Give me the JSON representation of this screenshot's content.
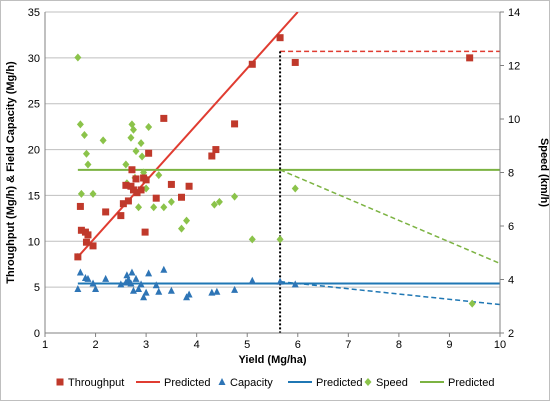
{
  "chart_data": {
    "type": "scatter",
    "xlabel": "Yield (Mg/ha)",
    "ylabel": "Throughput (Mg/h) & Field Capacity (Mg/h)",
    "y2label": "Speed (km/h)",
    "xlim": [
      1,
      10
    ],
    "ylim": [
      0,
      35
    ],
    "y2lim": [
      2,
      14
    ],
    "xticks": [
      "1",
      "2",
      "3",
      "4",
      "5",
      "6",
      "7",
      "8",
      "9",
      "10"
    ],
    "yticks": [
      "0",
      "5",
      "10",
      "15",
      "20",
      "25",
      "30",
      "35"
    ],
    "y2ticks": [
      "2",
      "4",
      "6",
      "8",
      "10",
      "12",
      "14"
    ],
    "grid": "horizontal",
    "legend_position": "bottom",
    "colors": {
      "throughput": "#c0392b",
      "capacity": "#2e75b6",
      "speed": "#8bc34a",
      "throughput_pred": "#e03c31",
      "capacity_pred": "#1f77b4",
      "speed_pred": "#7cb342"
    },
    "legend": [
      "Throughput",
      "Predicted",
      "Capacity",
      "Predicted",
      "Speed",
      "Predicted"
    ],
    "throughput": [
      [
        1.65,
        8.3
      ],
      [
        1.7,
        13.8
      ],
      [
        1.72,
        11.2
      ],
      [
        1.8,
        11
      ],
      [
        1.85,
        10.7
      ],
      [
        1.82,
        9.9
      ],
      [
        1.95,
        9.5
      ],
      [
        2.2,
        13.2
      ],
      [
        2.5,
        12.8
      ],
      [
        2.55,
        14.1
      ],
      [
        2.6,
        16.1
      ],
      [
        2.65,
        14.4
      ],
      [
        2.7,
        16
      ],
      [
        2.72,
        17.8
      ],
      [
        2.75,
        15.6
      ],
      [
        2.8,
        16.8
      ],
      [
        2.82,
        15.3
      ],
      [
        2.9,
        15.6
      ],
      [
        2.95,
        16.9
      ],
      [
        2.98,
        11
      ],
      [
        3.0,
        16.7
      ],
      [
        3.05,
        19.6
      ],
      [
        3.2,
        14.7
      ],
      [
        3.35,
        23.4
      ],
      [
        3.5,
        16.2
      ],
      [
        3.7,
        14.8
      ],
      [
        3.85,
        16
      ],
      [
        4.3,
        19.3
      ],
      [
        4.38,
        20
      ],
      [
        4.75,
        22.8
      ],
      [
        5.1,
        29.3
      ],
      [
        5.65,
        32.2
      ],
      [
        5.95,
        29.5
      ],
      [
        9.4,
        30
      ]
    ],
    "capacity": [
      [
        1.65,
        8.3
      ],
      [
        1.65,
        4.8
      ],
      [
        1.7,
        6.6
      ],
      [
        1.8,
        6
      ],
      [
        1.85,
        5.9
      ],
      [
        1.95,
        5.4
      ],
      [
        2.0,
        4.8
      ],
      [
        2.2,
        5.9
      ],
      [
        2.5,
        5.3
      ],
      [
        2.6,
        5.5
      ],
      [
        2.62,
        6.3
      ],
      [
        2.65,
        5.8
      ],
      [
        2.7,
        5.4
      ],
      [
        2.72,
        6.6
      ],
      [
        2.75,
        4.6
      ],
      [
        2.8,
        5.9
      ],
      [
        2.85,
        4.8
      ],
      [
        2.9,
        5.3
      ],
      [
        2.95,
        3.9
      ],
      [
        3.0,
        4.4
      ],
      [
        3.05,
        6.5
      ],
      [
        3.2,
        5.2
      ],
      [
        3.25,
        4.5
      ],
      [
        3.35,
        6.9
      ],
      [
        3.5,
        4.6
      ],
      [
        3.8,
        3.9
      ],
      [
        3.85,
        4.2
      ],
      [
        4.3,
        4.4
      ],
      [
        4.4,
        4.5
      ],
      [
        4.75,
        4.7
      ],
      [
        5.1,
        5.7
      ],
      [
        5.65,
        5.6
      ],
      [
        5.95,
        5.3
      ]
    ],
    "speed": [
      [
        1.65,
        12.3
      ],
      [
        1.7,
        9.8
      ],
      [
        1.72,
        7.2
      ],
      [
        1.78,
        9.4
      ],
      [
        1.82,
        8.7
      ],
      [
        1.85,
        8.3
      ],
      [
        1.95,
        7.2
      ],
      [
        2.15,
        9.2
      ],
      [
        2.6,
        8.3
      ],
      [
        2.62,
        7.6
      ],
      [
        2.7,
        9.3
      ],
      [
        2.72,
        9.8
      ],
      [
        2.75,
        9.6
      ],
      [
        2.78,
        7.8
      ],
      [
        2.8,
        8.8
      ],
      [
        2.85,
        6.7
      ],
      [
        2.9,
        9.1
      ],
      [
        2.92,
        8.6
      ],
      [
        2.95,
        8.0
      ],
      [
        3.0,
        7.4
      ],
      [
        3.05,
        9.7
      ],
      [
        3.15,
        6.7
      ],
      [
        3.25,
        7.9
      ],
      [
        3.35,
        6.7
      ],
      [
        3.5,
        6.9
      ],
      [
        3.7,
        5.9
      ],
      [
        3.8,
        6.2
      ],
      [
        4.35,
        6.8
      ],
      [
        4.45,
        6.9
      ],
      [
        4.75,
        7.1
      ],
      [
        5.1,
        5.5
      ],
      [
        5.65,
        5.5
      ],
      [
        5.95,
        7.4
      ],
      [
        9.45,
        3.1
      ]
    ],
    "throughput_predicted_line": [
      [
        1.65,
        8.3
      ],
      [
        6.0,
        35
      ]
    ],
    "throughput_extension": [
      [
        5.65,
        30.7
      ],
      [
        10,
        30.7
      ]
    ],
    "capacity_predicted_line": [
      [
        1.65,
        5.4
      ],
      [
        10,
        5.4
      ]
    ],
    "capacity_extension": [
      [
        5.65,
        5.6
      ],
      [
        10,
        3.1
      ]
    ],
    "speed_predicted_line": [
      [
        1.65,
        8.1
      ],
      [
        10,
        8.1
      ]
    ],
    "speed_extension": [
      [
        5.65,
        8.1
      ],
      [
        10,
        4.6
      ]
    ],
    "divider_x": 5.65
  }
}
